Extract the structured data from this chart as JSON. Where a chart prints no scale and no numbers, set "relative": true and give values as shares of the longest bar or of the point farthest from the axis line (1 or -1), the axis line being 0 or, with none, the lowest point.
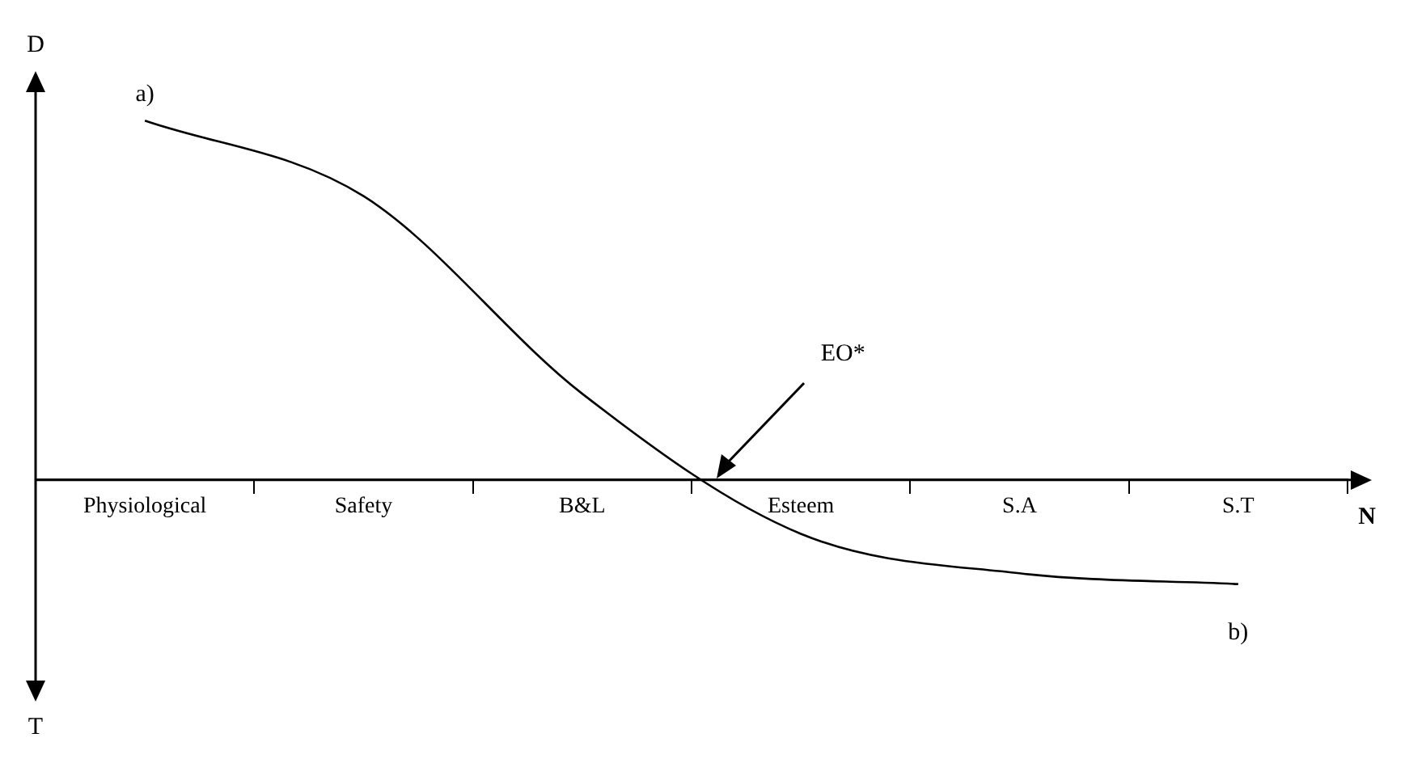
{
  "chart_data": {
    "type": "line",
    "relative": true,
    "categories": [
      "Physiological",
      "Safety",
      "B&L",
      "Esteem",
      "S.A",
      "S.T"
    ],
    "ylabel": "D",
    "xlabel": "N",
    "series": [
      {
        "color": "#000000",
        "values": [
          1,
          0.79,
          0.24,
          -0.15,
          -0.26,
          -0.29
        ]
      }
    ],
    "marker": "none",
    "line_style": "solid",
    "legend": false,
    "annotations": [
      {
        "text": "a)",
        "x": "Physiological",
        "y": 1
      },
      {
        "text": "b)",
        "x": "S.T",
        "y": -0.29
      },
      "EO*",
      "T"
    ]
  }
}
